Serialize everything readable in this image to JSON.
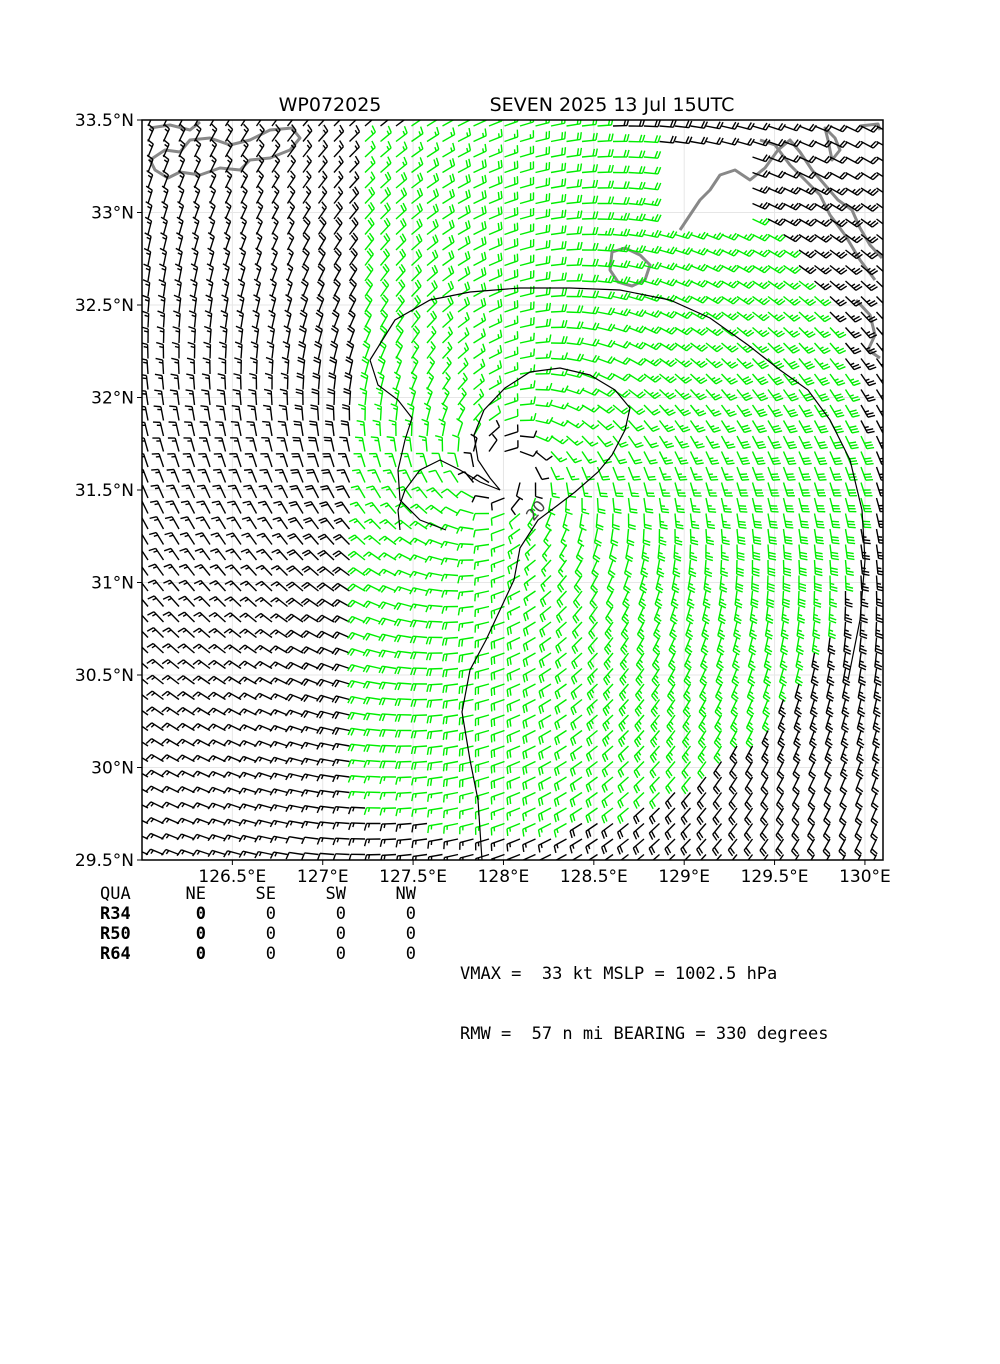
{
  "title_left": "WP072025",
  "title_right": "SEVEN 2025 13 Jul 15UTC",
  "map": {
    "lon_range": [
      126.0,
      130.1
    ],
    "lat_range": [
      29.5,
      33.5
    ],
    "x_ticks": [
      {
        "value": 126.5,
        "label": "126.5°E"
      },
      {
        "value": 127.0,
        "label": "127°E"
      },
      {
        "value": 127.5,
        "label": "127.5°E"
      },
      {
        "value": 128.0,
        "label": "128°E"
      },
      {
        "value": 128.5,
        "label": "128.5°E"
      },
      {
        "value": 129.0,
        "label": "129°E"
      },
      {
        "value": 129.5,
        "label": "129.5°E"
      },
      {
        "value": 130.0,
        "label": "130°E"
      }
    ],
    "y_ticks": [
      {
        "value": 33.5,
        "label": "33.5°N"
      },
      {
        "value": 33.0,
        "label": "33°N"
      },
      {
        "value": 32.5,
        "label": "32.5°N"
      },
      {
        "value": 32.0,
        "label": "32°N"
      },
      {
        "value": 31.5,
        "label": "31.5°N"
      },
      {
        "value": 31.0,
        "label": "31°N"
      },
      {
        "value": 30.5,
        "label": "30.5°N"
      },
      {
        "value": 30.0,
        "label": "30°N"
      },
      {
        "value": 29.5,
        "label": "29.5°N"
      }
    ],
    "grid": true,
    "center_lon": 128.0,
    "center_lat": 31.6,
    "contour_label": "20",
    "colors": {
      "normal_barb": "#000000",
      "strong_barb": "#00ee00",
      "coast": "#888888",
      "grid": "#e6e6e6",
      "contour": "#000000"
    }
  },
  "quadrant_table": {
    "header": [
      "QUA",
      "NE",
      "SE",
      "SW",
      "NW"
    ],
    "rows": [
      {
        "name": "R34",
        "values": [
          "0",
          "0",
          "0",
          "0"
        ]
      },
      {
        "name": "R50",
        "values": [
          "0",
          "0",
          "0",
          "0"
        ]
      },
      {
        "name": "R64",
        "values": [
          "0",
          "0",
          "0",
          "0"
        ]
      }
    ]
  },
  "stats": {
    "line1": "VMAX =  33 kt MSLP = 1002.5 hPa",
    "line2": "RMW =  57 n mi BEARING = 330 degrees"
  }
}
